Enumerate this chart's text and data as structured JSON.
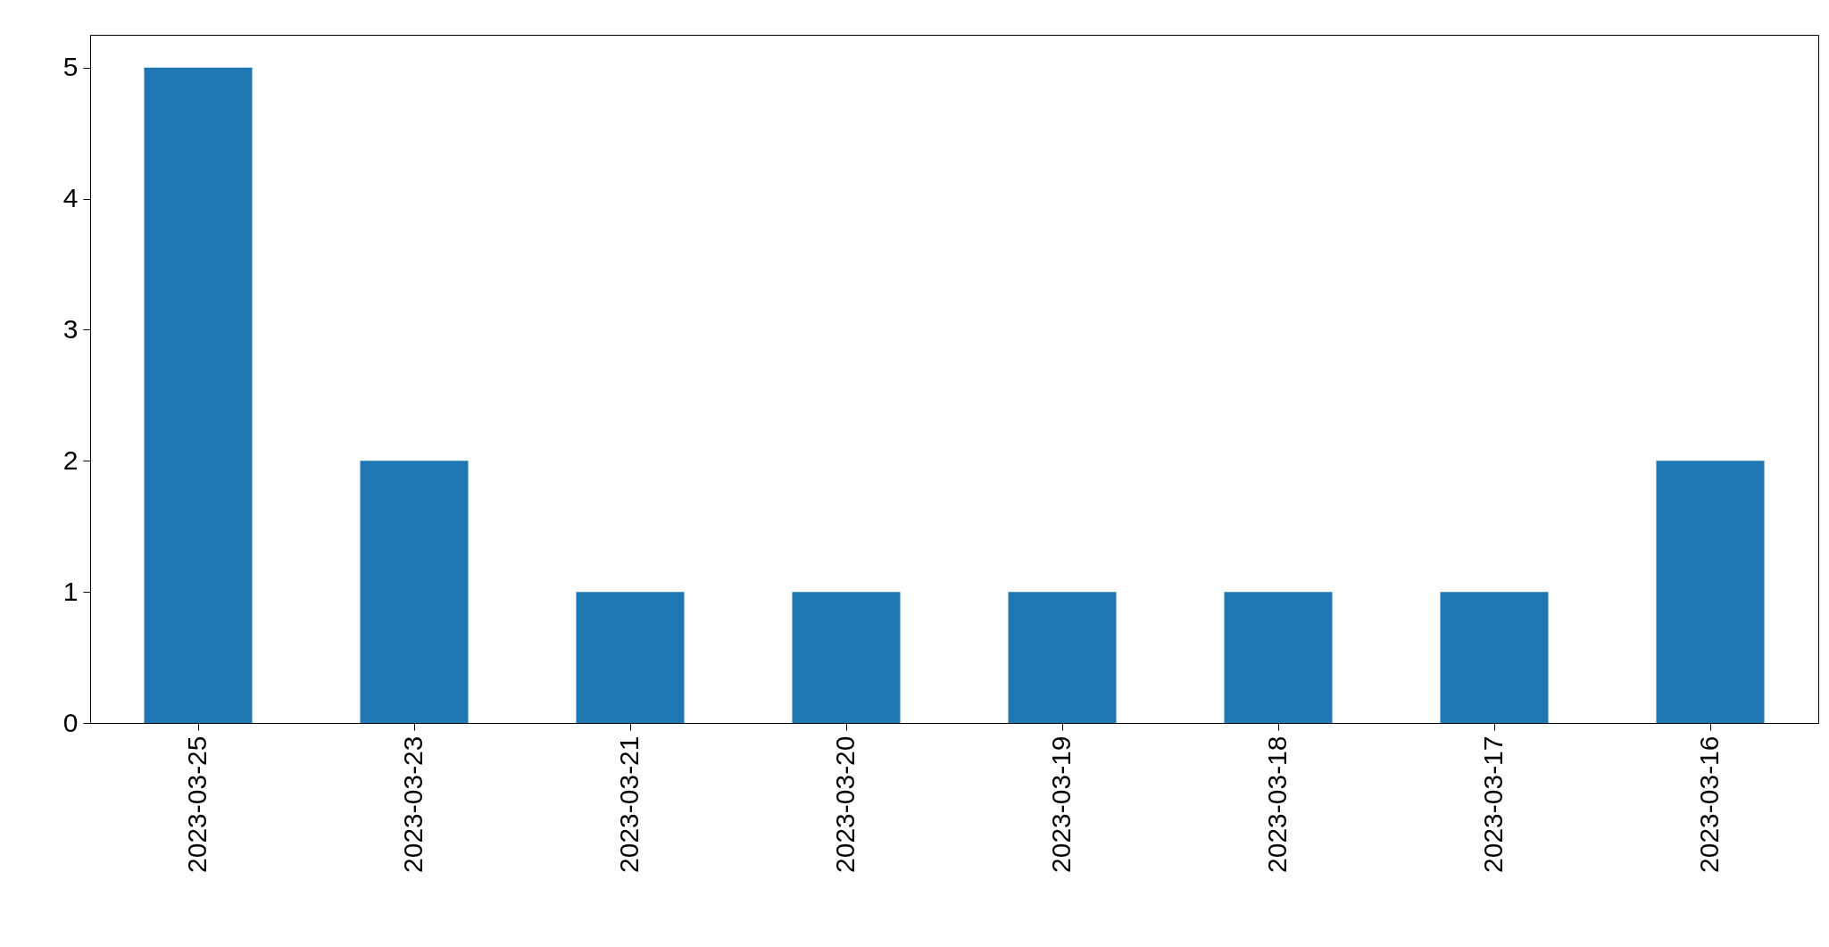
{
  "chart_data": {
    "type": "bar",
    "categories": [
      "2023-03-25",
      "2023-03-23",
      "2023-03-21",
      "2023-03-20",
      "2023-03-19",
      "2023-03-18",
      "2023-03-17",
      "2023-03-16"
    ],
    "values": [
      5,
      2,
      1,
      1,
      1,
      1,
      1,
      2
    ],
    "color": "#1f77b4",
    "ylim": [
      0,
      5.25
    ],
    "yticks": [
      0,
      1,
      2,
      3,
      4,
      5
    ],
    "grid": false
  }
}
